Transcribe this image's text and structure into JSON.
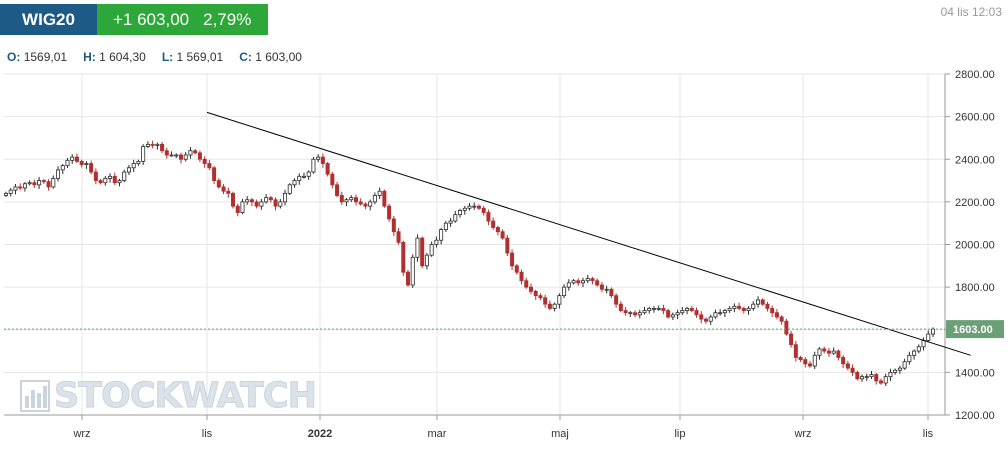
{
  "header": {
    "symbol": "WIG20",
    "change_abs": "+1 603,00",
    "change_pct": "2,79%",
    "timestamp": "04 lis 12:03",
    "symbol_color": "#1e5a86",
    "change_color": "#2ea73a"
  },
  "ohlc": {
    "open_label": "O:",
    "open": "1569,01",
    "high_label": "H:",
    "high": "1 604,30",
    "low_label": "L:",
    "low": "1 569,01",
    "close_label": "C:",
    "close": "1 603,00"
  },
  "watermark": {
    "text": "STOCKWATCH",
    "icon": "bar-chart-icon"
  },
  "chart_data": {
    "type": "line",
    "style": "candlestick",
    "x_ticks": [
      "wrz",
      "lis",
      "2022",
      "mar",
      "maj",
      "lip",
      "wrz",
      "lis"
    ],
    "y_ticks": [
      "1200.00",
      "1400.00",
      "1600.00",
      "1800.00",
      "2000.00",
      "2200.00",
      "2400.00",
      "2600.00",
      "2800.00"
    ],
    "ylim": [
      1200,
      2800
    ],
    "last_price_label": "1603.00",
    "last_price": 1603.0,
    "last_price_color": "#6a9f77",
    "up_color": "#2b2b2b",
    "down_color": "#b03030",
    "grid": true,
    "y_axis_side": "right",
    "series": [
      {
        "values": [
          2240,
          2255,
          2270,
          2265,
          2285,
          2290,
          2280,
          2300,
          2295,
          2270,
          2310,
          2350,
          2370,
          2395,
          2410,
          2390,
          2375,
          2380,
          2340,
          2300,
          2290,
          2310,
          2320,
          2290,
          2300,
          2340,
          2360,
          2380,
          2390,
          2460,
          2470,
          2465,
          2470,
          2440,
          2420,
          2420,
          2420,
          2400,
          2420,
          2440,
          2430,
          2400,
          2380,
          2360,
          2300,
          2270,
          2250,
          2240,
          2180,
          2150,
          2200,
          2210,
          2200,
          2180,
          2200,
          2220,
          2210,
          2180,
          2200,
          2240,
          2280,
          2300,
          2320,
          2320,
          2340,
          2400,
          2410,
          2380,
          2330,
          2280,
          2230,
          2200,
          2210,
          2220,
          2200,
          2190,
          2180,
          2200,
          2230,
          2250,
          2180,
          2120,
          2060,
          2010,
          1870,
          1810,
          1940,
          2030,
          1900,
          1950,
          2000,
          2020,
          2070,
          2100,
          2110,
          2140,
          2160,
          2170,
          2180,
          2180,
          2170,
          2150,
          2110,
          2080,
          2060,
          2030,
          1960,
          1900,
          1870,
          1830,
          1800,
          1780,
          1760,
          1750,
          1720,
          1700,
          1720,
          1760,
          1800,
          1820,
          1830,
          1820,
          1830,
          1840,
          1830,
          1810,
          1790,
          1790,
          1760,
          1720,
          1690,
          1680,
          1680,
          1670,
          1680,
          1690,
          1700,
          1700,
          1700,
          1690,
          1660,
          1670,
          1680,
          1690,
          1700,
          1690,
          1670,
          1650,
          1640,
          1660,
          1680,
          1680,
          1690,
          1700,
          1710,
          1700,
          1690,
          1700,
          1720,
          1740,
          1720,
          1700,
          1680,
          1660,
          1640,
          1580,
          1530,
          1470,
          1460,
          1440,
          1430,
          1480,
          1510,
          1500,
          1490,
          1500,
          1470,
          1440,
          1420,
          1400,
          1370,
          1380,
          1380,
          1390,
          1360,
          1350,
          1380,
          1400,
          1410,
          1420,
          1450,
          1480,
          1500,
          1520,
          1550,
          1580,
          1603
        ]
      }
    ],
    "trendline": {
      "start": [
        0.0,
        2620
      ],
      "end": [
        1.04,
        1480
      ]
    }
  }
}
